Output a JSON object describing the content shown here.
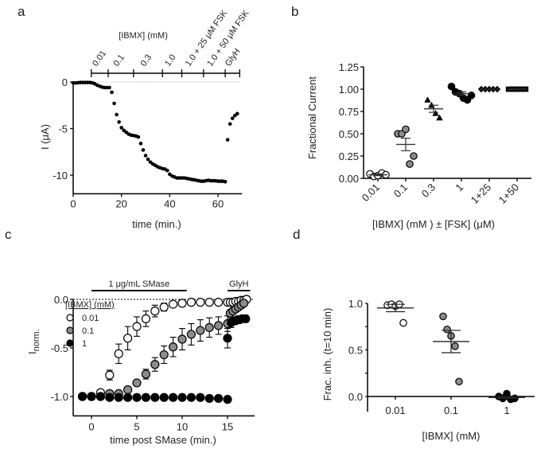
{
  "figure": {
    "panel_labels": [
      "a",
      "b",
      "c",
      "d"
    ]
  },
  "chart_data": [
    {
      "panel": "a",
      "type": "scatter",
      "title": "",
      "xlabel": "time (min.)",
      "ylabel": "I (μA)",
      "xlim": [
        0,
        70
      ],
      "ylim": [
        -12,
        0
      ],
      "xticks": [
        0,
        20,
        40,
        60
      ],
      "yticks": [
        0,
        -5,
        -10
      ],
      "ytick_labels": [
        "0",
        "-5",
        "-10"
      ],
      "zero_line": "dotted",
      "treatment_bar": {
        "title": "[IBMX] (mM)",
        "boundaries": [
          7.5,
          14.5,
          25,
          37,
          45,
          54,
          63,
          69
        ],
        "labels": [
          "0.01",
          "0.1",
          "0.3",
          "1.0",
          "1.0 + 25 μM FSK",
          "1.0 + 50 μM FSK",
          "GlyH"
        ]
      },
      "series": [
        {
          "name": "current",
          "marker": "filled-circle",
          "color": "#000000",
          "x": [
            0,
            1,
            2,
            3,
            4,
            5,
            6,
            7,
            8,
            9,
            10,
            11,
            12,
            13,
            14,
            15,
            16,
            17,
            18,
            19,
            20,
            21,
            22,
            23,
            24,
            25,
            26,
            27,
            28,
            29,
            30,
            31,
            32,
            33,
            34,
            35,
            36,
            37,
            38,
            39,
            40,
            41,
            42,
            43,
            44,
            45,
            46,
            47,
            48,
            49,
            50,
            51,
            52,
            53,
            54,
            55,
            56,
            57,
            58,
            59,
            60,
            61,
            62,
            63,
            64,
            65,
            66,
            67,
            68
          ],
          "y": [
            -0.1,
            -0.1,
            -0.08,
            -0.05,
            -0.05,
            -0.05,
            -0.05,
            -0.05,
            -0.1,
            -0.2,
            -0.35,
            -0.45,
            -0.55,
            -0.6,
            -0.6,
            -0.6,
            -1.1,
            -2.3,
            -3.5,
            -4.3,
            -4.9,
            -5.2,
            -5.4,
            -5.6,
            -5.7,
            -5.75,
            -5.8,
            -5.9,
            -6.6,
            -7.3,
            -7.9,
            -8.3,
            -8.6,
            -8.8,
            -8.95,
            -9.1,
            -9.2,
            -9.3,
            -9.35,
            -9.5,
            -9.9,
            -10.1,
            -10.2,
            -10.3,
            -10.3,
            -10.3,
            -10.3,
            -10.35,
            -10.4,
            -10.45,
            -10.5,
            -10.55,
            -10.6,
            -10.65,
            -10.65,
            -10.6,
            -10.55,
            -10.6,
            -10.6,
            -10.6,
            -10.65,
            -10.65,
            -10.65,
            -10.7,
            -6.2,
            -4.5,
            -3.9,
            -3.6,
            -3.4
          ]
        }
      ]
    },
    {
      "panel": "b",
      "type": "scatter",
      "title": "",
      "xlabel": "[IBMX] (mM ) ± [FSK] (μM)",
      "ylabel": "Fractional Current",
      "ylim": [
        0,
        1.25
      ],
      "yticks": [
        0.0,
        0.25,
        0.5,
        0.75,
        1.0,
        1.25
      ],
      "ytick_labels": [
        "0.00",
        "0.25",
        "0.50",
        "0.75",
        "1.00",
        "1.25"
      ],
      "categories": [
        "0.01",
        "0.1",
        "0.3",
        "1",
        "1+25",
        "1+50"
      ],
      "groups": [
        {
          "category": "0.01",
          "marker": "open-circle",
          "fill": "#ffffff",
          "values": [
            0.05,
            0.02,
            0.03,
            0.06,
            0.04
          ],
          "mean": 0.04,
          "sem": 0.01
        },
        {
          "category": "0.1",
          "marker": "gray-circle",
          "fill": "#8c8c8c",
          "values": [
            0.5,
            0.5,
            0.55,
            0.16,
            0.25
          ],
          "mean": 0.38,
          "sem": 0.07
        },
        {
          "category": "0.3",
          "marker": "filled-triangle",
          "fill": "#000000",
          "values": [
            0.88,
            0.82,
            0.73,
            0.68
          ],
          "mean": 0.78,
          "sem": 0.04
        },
        {
          "category": "1",
          "marker": "filled-circle",
          "fill": "#000000",
          "values": [
            1.03,
            0.97,
            0.95,
            0.9,
            0.88,
            0.93
          ],
          "mean": 0.95,
          "sem": 0.02
        },
        {
          "category": "1+25",
          "marker": "filled-diamond",
          "fill": "#000000",
          "values": [
            1.0,
            1.0,
            1.0,
            1.0,
            1.0
          ],
          "mean": 1.0,
          "sem": 0.0
        },
        {
          "category": "1+50",
          "marker": "filled-square",
          "fill": "#000000",
          "values": [
            1.0,
            1.0,
            1.0,
            1.0,
            1.0
          ],
          "mean": 1.0,
          "sem": 0.0
        }
      ]
    },
    {
      "panel": "c",
      "type": "scatter",
      "title": "",
      "xlabel": "time post SMase (min.)",
      "ylabel": "I",
      "ylabel_subscript": "norm.",
      "xlim": [
        -2,
        18
      ],
      "ylim": [
        -1.2,
        0
      ],
      "xticks": [
        0,
        5,
        10,
        15
      ],
      "yticks": [
        0.0,
        -0.5,
        -1.0
      ],
      "ytick_labels": [
        "0.0",
        "-0.5",
        "-1.0"
      ],
      "zero_line": "dotted",
      "bars": [
        {
          "label": "1 μg/mL SMase",
          "from": 0,
          "to": 10.5
        },
        {
          "label": "GlyH",
          "from": 15,
          "to": 17.5
        }
      ],
      "legend": {
        "title": "[IBMX] (mM)",
        "position": "top-left",
        "entries": [
          "0.01",
          "0.1",
          "1"
        ]
      },
      "series": [
        {
          "name": "0.01",
          "marker": "open-circle",
          "fill": "#ffffff",
          "x": [
            -1,
            0,
            1,
            2,
            3,
            4,
            5,
            6,
            7,
            8,
            9,
            10,
            11,
            12,
            13,
            14,
            15,
            15.3,
            15.6,
            15.9,
            16.2,
            16.5,
            16.8,
            17.1
          ],
          "y": [
            -1.0,
            -1.0,
            -0.96,
            -0.78,
            -0.56,
            -0.4,
            -0.28,
            -0.2,
            -0.12,
            -0.08,
            -0.05,
            -0.04,
            -0.03,
            -0.03,
            -0.03,
            -0.03,
            -0.03,
            -0.03,
            -0.03,
            -0.02,
            -0.02,
            -0.01,
            -0.01,
            0.0
          ],
          "err": [
            0,
            0,
            0,
            0.05,
            0.1,
            0.12,
            0.1,
            0.08,
            0.06,
            0.04,
            0.03,
            0.03,
            0.02,
            0,
            0,
            0,
            0,
            0,
            0,
            0,
            0,
            0,
            0,
            0
          ]
        },
        {
          "name": "0.1",
          "marker": "gray-circle",
          "fill": "#8c8c8c",
          "x": [
            -1,
            0,
            1,
            2,
            3,
            4,
            5,
            6,
            7,
            8,
            9,
            10,
            11,
            12,
            13,
            14,
            15,
            15.3,
            15.6,
            15.9,
            16.2,
            16.5,
            16.8
          ],
          "y": [
            -1.0,
            -1.0,
            -1.0,
            -0.97,
            -0.97,
            -0.93,
            -0.86,
            -0.77,
            -0.67,
            -0.57,
            -0.49,
            -0.41,
            -0.36,
            -0.32,
            -0.29,
            -0.27,
            -0.25,
            -0.14,
            -0.12,
            -0.1,
            -0.08,
            -0.06,
            -0.04
          ],
          "err": [
            0,
            0,
            0,
            0,
            0,
            0,
            0.03,
            0.05,
            0.07,
            0.09,
            0.1,
            0.11,
            0.11,
            0.11,
            0.1,
            0.09,
            0.08,
            0,
            0,
            0,
            0,
            0,
            0
          ]
        },
        {
          "name": "1",
          "marker": "filled-circle",
          "fill": "#000000",
          "x": [
            -1,
            0,
            1,
            2,
            3,
            4,
            5,
            6,
            7,
            8,
            9,
            10,
            11,
            12,
            13,
            14,
            15,
            15,
            15.4,
            15.8,
            16.2,
            16.6,
            17.0
          ],
          "y": [
            -1.0,
            -1.0,
            -1.0,
            -1.01,
            -1.01,
            -1.01,
            -1.01,
            -1.01,
            -1.01,
            -1.01,
            -1.01,
            -1.01,
            -1.01,
            -1.01,
            -1.02,
            -1.02,
            -1.03,
            -0.4,
            -0.24,
            -0.22,
            -0.21,
            -0.2,
            -0.2
          ],
          "err": [
            0,
            0,
            0,
            0,
            0,
            0,
            0,
            0,
            0,
            0,
            0,
            0,
            0,
            0,
            0,
            0,
            0,
            0.1,
            0.05,
            0.04,
            0.04,
            0.03,
            0.03
          ]
        }
      ]
    },
    {
      "panel": "d",
      "type": "scatter",
      "title": "",
      "xlabel": "[IBMX] (mM)",
      "ylabel": "Frac. inh. (t=10 min)",
      "ylim": [
        -0.1,
        1.0
      ],
      "yticks": [
        0.0,
        0.5,
        1.0
      ],
      "ytick_labels": [
        "0.0",
        "0.5",
        "1.0"
      ],
      "categories": [
        "0.01",
        "0.1",
        "1"
      ],
      "groups": [
        {
          "category": "0.01",
          "marker": "open-circle",
          "fill": "#ffffff",
          "values": [
            0.98,
            0.99,
            0.97,
            0.99,
            0.79
          ],
          "mean": 0.95,
          "sem": 0.04
        },
        {
          "category": "0.1",
          "marker": "gray-circle",
          "fill": "#8c8c8c",
          "values": [
            0.86,
            0.72,
            0.65,
            0.54,
            0.16
          ],
          "mean": 0.59,
          "sem": 0.12
        },
        {
          "category": "1",
          "marker": "filled-circle",
          "fill": "#000000",
          "values": [
            0.0,
            -0.02,
            0.03,
            -0.03,
            -0.02
          ],
          "mean": -0.01,
          "sem": 0.01
        }
      ]
    }
  ]
}
